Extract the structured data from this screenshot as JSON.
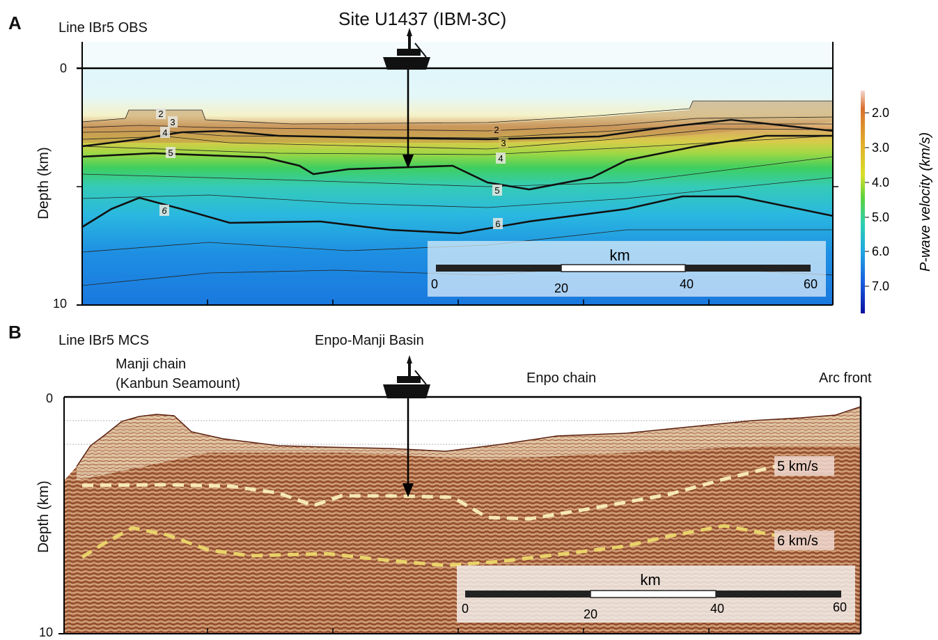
{
  "panelA": {
    "letter": "A",
    "line_label": "Line IBr5  OBS",
    "site_title": "Site U1437 (IBM-3C)",
    "y_axis_label": "Depth (km)",
    "y_ticks": [
      "0",
      "10"
    ],
    "contour_labels": [
      "2",
      "3",
      "4",
      "5",
      "6",
      "2",
      "3",
      "4",
      "5",
      "6"
    ],
    "scalebar": {
      "unit": "km",
      "ticks": [
        "0",
        "20",
        "40",
        "60"
      ]
    },
    "colorbar": {
      "label": "P-wave velocity (km/s)",
      "ticks": [
        "2.0",
        "3.0",
        "4.0",
        "5.0",
        "6.0",
        "7.0"
      ]
    }
  },
  "panelB": {
    "letter": "B",
    "line_label": "Line IBr5  MCS",
    "basin_label": "Enpo-Manji Basin",
    "manji_label_1": "Manji chain",
    "manji_label_2": "(Kanbun Seamount)",
    "enpo_label": "Enpo chain",
    "arc_label": "Arc front",
    "y_axis_label": "Depth (km)",
    "y_ticks": [
      "0",
      "10"
    ],
    "velocity_labels": [
      "5 km/s",
      "6 km/s"
    ],
    "scalebar": {
      "unit": "km",
      "ticks": [
        "0",
        "20",
        "40",
        "60"
      ]
    }
  },
  "colors": {
    "ship": "#111111",
    "dash_5": "#f6e9b6",
    "dash_6": "#ead36a",
    "seismic": "#a8563a"
  }
}
